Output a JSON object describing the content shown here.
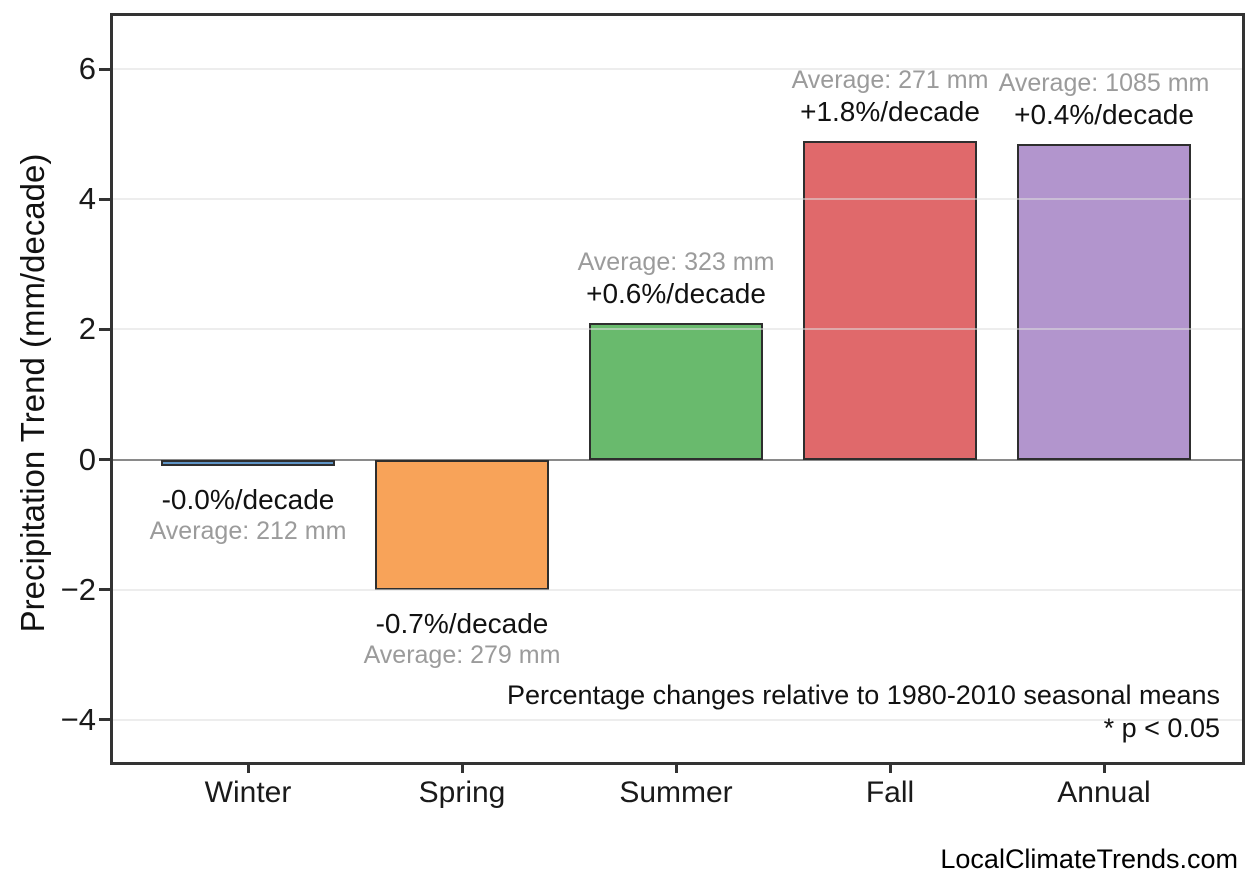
{
  "chart_data": {
    "type": "bar",
    "title": "",
    "xlabel": "",
    "ylabel": "Precipitation Trend (mm/decade)",
    "categories": [
      "Winter",
      "Spring",
      "Summer",
      "Fall",
      "Annual"
    ],
    "values": [
      -0.1,
      -2.0,
      2.1,
      4.9,
      4.85
    ],
    "bar_colors": [
      "#5e94c6",
      "#f8a359",
      "#69ba6d",
      "#e0696b",
      "#b295cd"
    ],
    "bar_edge_color": "#2e2e2e",
    "annotations": [
      {
        "category": "Winter",
        "trend_label": "-0.0%/decade",
        "average_label": "Average: 212 mm",
        "placement": "below"
      },
      {
        "category": "Spring",
        "trend_label": "-0.7%/decade",
        "average_label": "Average: 279 mm",
        "placement": "below"
      },
      {
        "category": "Summer",
        "trend_label": "+0.6%/decade",
        "average_label": "Average: 323 mm",
        "placement": "above"
      },
      {
        "category": "Fall",
        "trend_label": "+1.8%/decade",
        "average_label": "Average: 271 mm",
        "placement": "above"
      },
      {
        "category": "Annual",
        "trend_label": "+0.4%/decade",
        "average_label": "Average: 1085 mm",
        "placement": "above"
      }
    ],
    "yticks": [
      6,
      4,
      2,
      0,
      -2,
      -4
    ],
    "ytick_labels": [
      "6",
      "4",
      "2",
      "0",
      "−2",
      "−4"
    ],
    "ylim": [
      -4.65,
      6.82
    ],
    "grid": "horizontal-light",
    "zero_line": true,
    "legend_position": "none",
    "footnote_line1": "Percentage changes relative to 1980-2010 seasonal means",
    "footnote_line2": "* p < 0.05",
    "watermark": "LocalClimateTrends.com",
    "colors": {
      "annotation_trend": "#111111",
      "annotation_average": "#9b9b9b",
      "gridline": "#dedede",
      "zero_line": "#8a8a8a",
      "axis_border": "#333333",
      "tick_label": "#1a1a1a"
    }
  }
}
